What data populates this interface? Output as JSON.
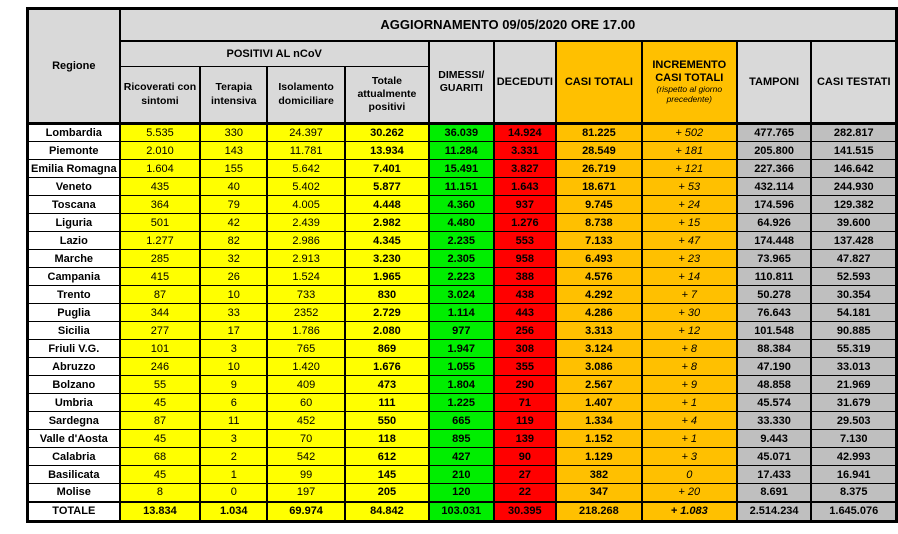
{
  "title": "AGGIORNAMENTO 09/05/2020 ORE 17.00",
  "colors": {
    "header_gray": "#D9D9D9",
    "data_gray": "#BFBFBF",
    "positivi_yellow": "#FFFF00",
    "guariti_green": "#00EE00",
    "deceduti_red": "#FF0000",
    "totali_orange": "#FFC000",
    "border_black": "#000000"
  },
  "table": {
    "columns": {
      "regione": "Regione",
      "positivi_group": "POSITIVI AL nCoV",
      "ricoverati": "Ricoverati con sintomi",
      "terapia": "Terapia intensiva",
      "isolamento": "Isolamento domiciliare",
      "totale_positivi": "Totale attualmente positivi",
      "dimessi": "DIMESSI/ GUARITI",
      "deceduti": "DECEDUTI",
      "casi_totali": "CASI TOTALI",
      "incremento_line1": "INCREMENTO",
      "incremento_line2": "CASI TOTALI",
      "incremento_note": "(rispetto al giorno precedente)",
      "tamponi": "TAMPONI",
      "casi_testati": "CASI TESTATI"
    },
    "rows": [
      {
        "regione": "Lombardia",
        "values": [
          "5.535",
          "330",
          "24.397",
          "30.262",
          "36.039",
          "14.924",
          "81.225",
          "+ 502",
          "477.765",
          "282.817"
        ]
      },
      {
        "regione": "Piemonte",
        "values": [
          "2.010",
          "143",
          "11.781",
          "13.934",
          "11.284",
          "3.331",
          "28.549",
          "+ 181",
          "205.800",
          "141.515"
        ]
      },
      {
        "regione": "Emilia Romagna",
        "values": [
          "1.604",
          "155",
          "5.642",
          "7.401",
          "15.491",
          "3.827",
          "26.719",
          "+ 121",
          "227.366",
          "146.642"
        ]
      },
      {
        "regione": "Veneto",
        "values": [
          "435",
          "40",
          "5.402",
          "5.877",
          "11.151",
          "1.643",
          "18.671",
          "+ 53",
          "432.114",
          "244.930"
        ]
      },
      {
        "regione": "Toscana",
        "values": [
          "364",
          "79",
          "4.005",
          "4.448",
          "4.360",
          "937",
          "9.745",
          "+ 24",
          "174.596",
          "129.382"
        ]
      },
      {
        "regione": "Liguria",
        "values": [
          "501",
          "42",
          "2.439",
          "2.982",
          "4.480",
          "1.276",
          "8.738",
          "+ 15",
          "64.926",
          "39.600"
        ]
      },
      {
        "regione": "Lazio",
        "values": [
          "1.277",
          "82",
          "2.986",
          "4.345",
          "2.235",
          "553",
          "7.133",
          "+ 47",
          "174.448",
          "137.428"
        ]
      },
      {
        "regione": "Marche",
        "values": [
          "285",
          "32",
          "2.913",
          "3.230",
          "2.305",
          "958",
          "6.493",
          "+ 23",
          "73.965",
          "47.827"
        ]
      },
      {
        "regione": "Campania",
        "values": [
          "415",
          "26",
          "1.524",
          "1.965",
          "2.223",
          "388",
          "4.576",
          "+ 14",
          "110.811",
          "52.593"
        ]
      },
      {
        "regione": "Trento",
        "values": [
          "87",
          "10",
          "733",
          "830",
          "3.024",
          "438",
          "4.292",
          "+ 7",
          "50.278",
          "30.354"
        ]
      },
      {
        "regione": "Puglia",
        "values": [
          "344",
          "33",
          "2352",
          "2.729",
          "1.114",
          "443",
          "4.286",
          "+ 30",
          "76.643",
          "54.181"
        ]
      },
      {
        "regione": "Sicilia",
        "values": [
          "277",
          "17",
          "1.786",
          "2.080",
          "977",
          "256",
          "3.313",
          "+ 12",
          "101.548",
          "90.885"
        ]
      },
      {
        "regione": "Friuli V.G.",
        "values": [
          "101",
          "3",
          "765",
          "869",
          "1.947",
          "308",
          "3.124",
          "+ 8",
          "88.384",
          "55.319"
        ]
      },
      {
        "regione": "Abruzzo",
        "values": [
          "246",
          "10",
          "1.420",
          "1.676",
          "1.055",
          "355",
          "3.086",
          "+ 8",
          "47.190",
          "33.013"
        ]
      },
      {
        "regione": "Bolzano",
        "values": [
          "55",
          "9",
          "409",
          "473",
          "1.804",
          "290",
          "2.567",
          "+ 9",
          "48.858",
          "21.969"
        ]
      },
      {
        "regione": "Umbria",
        "values": [
          "45",
          "6",
          "60",
          "111",
          "1.225",
          "71",
          "1.407",
          "+ 1",
          "45.574",
          "31.679"
        ]
      },
      {
        "regione": "Sardegna",
        "values": [
          "87",
          "11",
          "452",
          "550",
          "665",
          "119",
          "1.334",
          "+ 4",
          "33.330",
          "29.503"
        ]
      },
      {
        "regione": "Valle d'Aosta",
        "values": [
          "45",
          "3",
          "70",
          "118",
          "895",
          "139",
          "1.152",
          "+ 1",
          "9.443",
          "7.130"
        ]
      },
      {
        "regione": "Calabria",
        "values": [
          "68",
          "2",
          "542",
          "612",
          "427",
          "90",
          "1.129",
          "+ 3",
          "45.071",
          "42.993"
        ]
      },
      {
        "regione": "Basilicata",
        "values": [
          "45",
          "1",
          "99",
          "145",
          "210",
          "27",
          "382",
          "0",
          "17.433",
          "16.941"
        ]
      },
      {
        "regione": "Molise",
        "values": [
          "8",
          "0",
          "197",
          "205",
          "120",
          "22",
          "347",
          "+ 20",
          "8.691",
          "8.375"
        ]
      }
    ],
    "total_row": {
      "regione": "TOTALE",
      "values": [
        "13.834",
        "1.034",
        "69.974",
        "84.842",
        "103.031",
        "30.395",
        "218.268",
        "+ 1.083",
        "2.514.234",
        "1.645.076"
      ]
    }
  }
}
